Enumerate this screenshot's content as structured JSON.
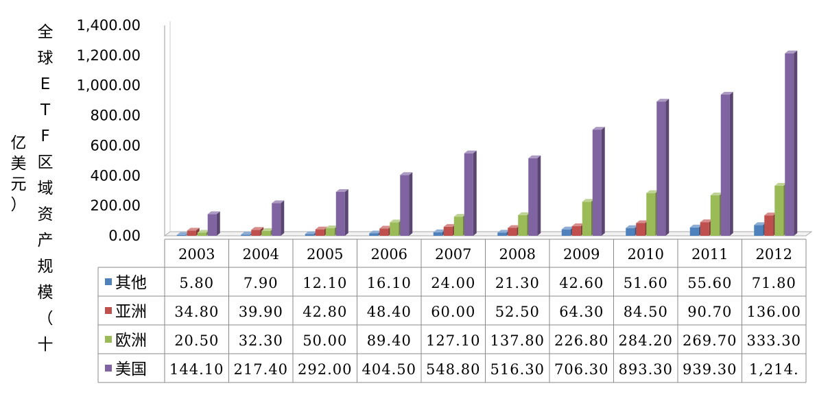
{
  "chart_data": {
    "type": "bar",
    "ylabel_outer": "亿美元）",
    "ylabel_inner": "全球ETF区域资产规模（十",
    "ylim": [
      0,
      1400
    ],
    "yticks": [
      "0.00",
      "200.00",
      "400.00",
      "600.00",
      "800.00",
      "1,000.00",
      "1,200.00",
      "1,400.00"
    ],
    "categories": [
      "2003",
      "2004",
      "2005",
      "2006",
      "2007",
      "2008",
      "2009",
      "2010",
      "2011",
      "2012"
    ],
    "grid": false,
    "series": [
      {
        "name": "其他",
        "color": "#4f81bd",
        "values": [
          5.8,
          7.9,
          12.1,
          16.1,
          24.0,
          21.3,
          42.6,
          51.6,
          55.6,
          71.8
        ],
        "labels": [
          "5.80",
          "7.90",
          "12.10",
          "16.10",
          "24.00",
          "21.30",
          "42.60",
          "51.60",
          "55.60",
          "71.80"
        ]
      },
      {
        "name": "亚洲",
        "color": "#c0504d",
        "values": [
          34.8,
          39.9,
          42.8,
          48.4,
          60.0,
          52.5,
          64.3,
          84.5,
          90.7,
          136.0
        ],
        "labels": [
          "34.80",
          "39.90",
          "42.80",
          "48.40",
          "60.00",
          "52.50",
          "64.30",
          "84.50",
          "90.70",
          "136.00"
        ]
      },
      {
        "name": "欧洲",
        "color": "#9bbb59",
        "values": [
          20.5,
          32.3,
          50.0,
          89.4,
          127.1,
          137.8,
          226.8,
          284.2,
          269.7,
          333.3
        ],
        "labels": [
          "20.50",
          "32.30",
          "50.00",
          "89.40",
          "127.10",
          "137.80",
          "226.80",
          "284.20",
          "269.70",
          "333.30"
        ]
      },
      {
        "name": "美国",
        "color": "#8064a2",
        "values": [
          144.1,
          217.4,
          292.0,
          404.5,
          548.8,
          516.3,
          706.3,
          893.3,
          939.3,
          1214.0
        ],
        "labels": [
          "144.10",
          "217.40",
          "292.00",
          "404.50",
          "548.80",
          "516.30",
          "706.30",
          "893.30",
          "939.30",
          "1,214."
        ]
      }
    ]
  }
}
